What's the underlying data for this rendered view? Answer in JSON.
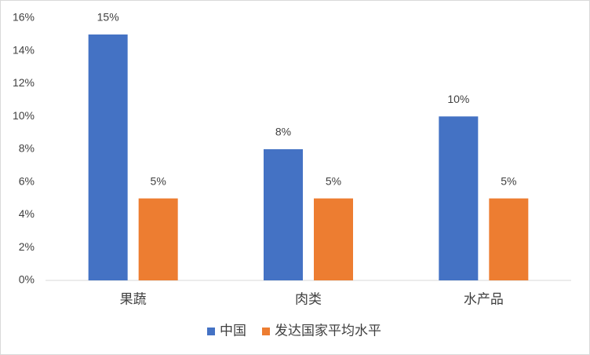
{
  "chart_data": {
    "type": "bar",
    "categories": [
      "果蔬",
      "肉类",
      "水产品"
    ],
    "series": [
      {
        "name": "中国",
        "color": "#4472c4",
        "values": [
          15,
          8,
          10
        ],
        "value_labels": [
          "15%",
          "8%",
          "10%"
        ]
      },
      {
        "name": "发达国家平均水平",
        "color": "#ed7d31",
        "values": [
          5,
          5,
          5
        ],
        "value_labels": [
          "5%",
          "5%",
          "5%"
        ]
      }
    ],
    "ylim": [
      0,
      16
    ],
    "yticks": [
      {
        "value": 0,
        "label": "0%"
      },
      {
        "value": 2,
        "label": "2%"
      },
      {
        "value": 4,
        "label": "4%"
      },
      {
        "value": 6,
        "label": "6%"
      },
      {
        "value": 8,
        "label": "8%"
      },
      {
        "value": 10,
        "label": "10%"
      },
      {
        "value": 12,
        "label": "12%"
      },
      {
        "value": 14,
        "label": "14%"
      },
      {
        "value": 16,
        "label": "16%"
      }
    ],
    "grid": false,
    "legend": "bottom"
  }
}
